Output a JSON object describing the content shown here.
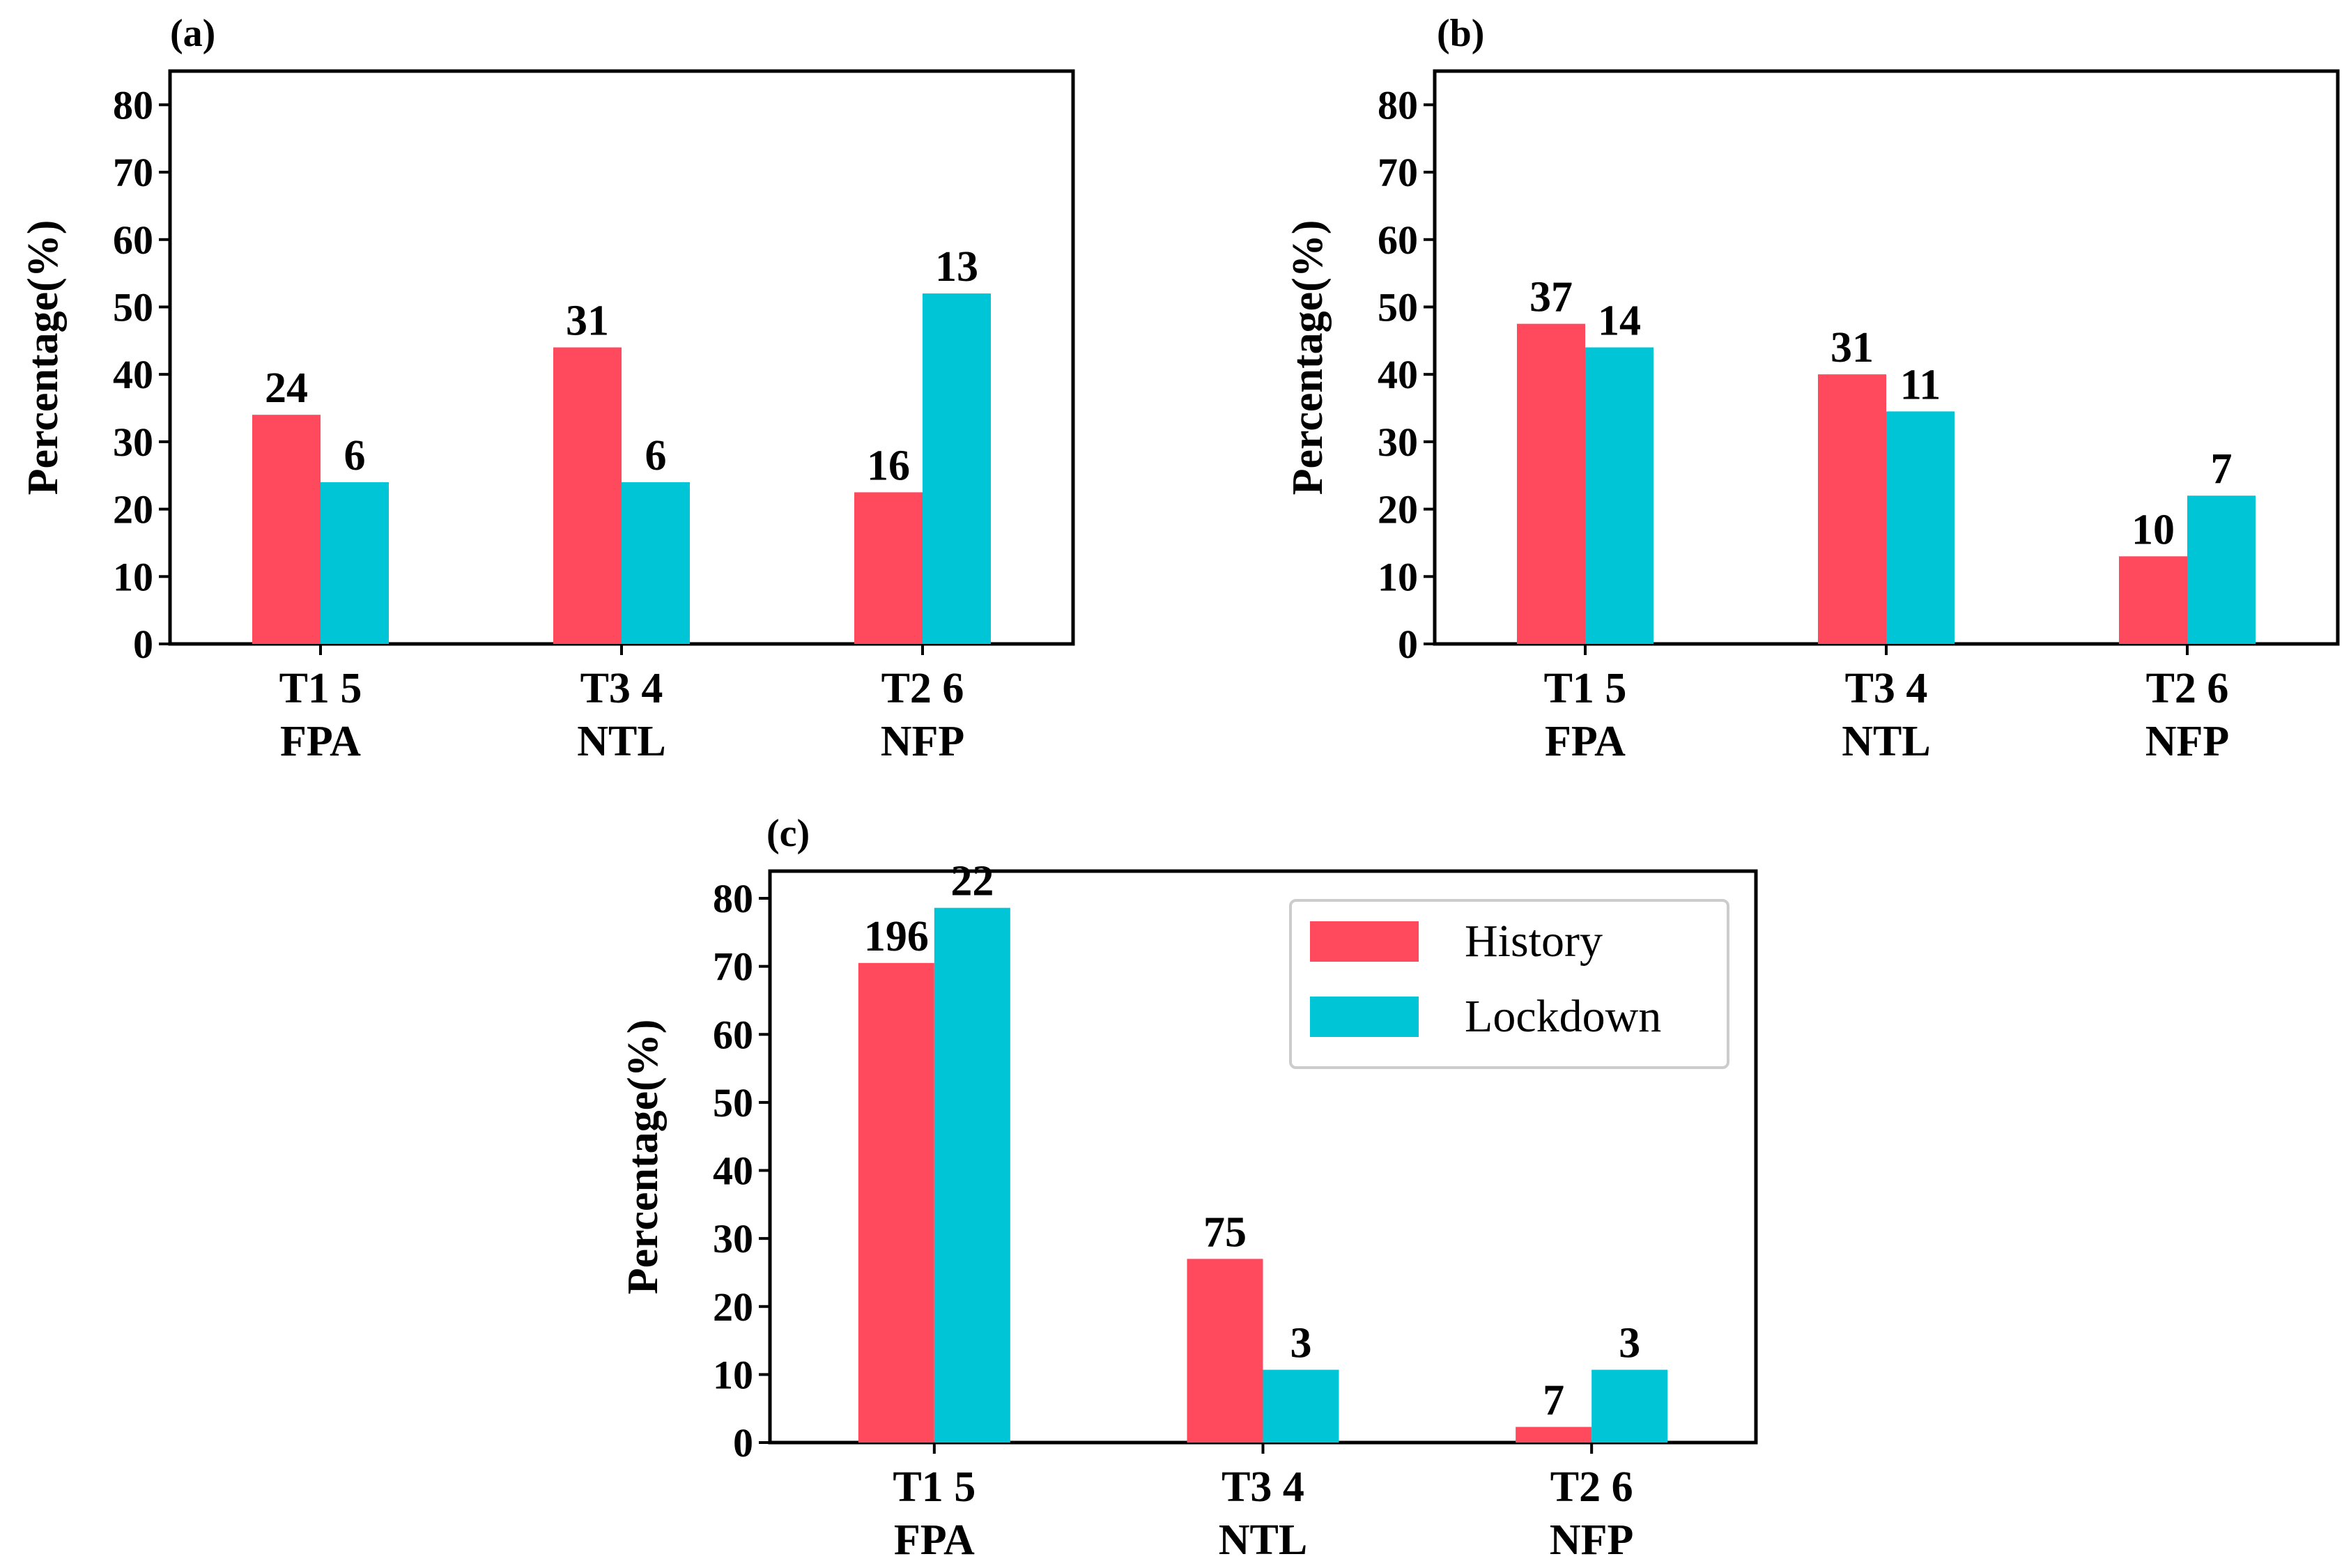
{
  "figure": {
    "legend": {
      "entries": [
        {
          "name": "History",
          "color": "#ff4a5e"
        },
        {
          "name": "Lockdown",
          "color": "#00c5d6"
        }
      ]
    }
  },
  "chart_data": [
    {
      "type": "bar",
      "panel": "(a)",
      "title": "",
      "xlabel": "",
      "ylabel": "Percentage(%)",
      "ylim": [
        0,
        85
      ],
      "yticks": [
        0,
        10,
        20,
        30,
        40,
        50,
        60,
        70,
        80
      ],
      "categories": [
        [
          "T1 5",
          "FPA"
        ],
        [
          "T3 4",
          "NTL"
        ],
        [
          "T2 6",
          "NFP"
        ]
      ],
      "series": [
        {
          "name": "History",
          "color": "#ff4a5e",
          "values": [
            34,
            44,
            22.5
          ],
          "labels": [
            "24",
            "31",
            "16"
          ]
        },
        {
          "name": "Lockdown",
          "color": "#00c5d6",
          "values": [
            24,
            24,
            52
          ],
          "labels": [
            "6",
            "6",
            "13"
          ]
        }
      ]
    },
    {
      "type": "bar",
      "panel": "(b)",
      "title": "",
      "xlabel": "",
      "ylabel": "Percentage(%)",
      "ylim": [
        0,
        85
      ],
      "yticks": [
        0,
        10,
        20,
        30,
        40,
        50,
        60,
        70,
        80
      ],
      "categories": [
        [
          "T1 5",
          "FPA"
        ],
        [
          "T3 4",
          "NTL"
        ],
        [
          "T2 6",
          "NFP"
        ]
      ],
      "series": [
        {
          "name": "History",
          "color": "#ff4a5e",
          "values": [
            47.5,
            40,
            13
          ],
          "labels": [
            "37",
            "31",
            "10"
          ]
        },
        {
          "name": "Lockdown",
          "color": "#00c5d6",
          "values": [
            44,
            34.5,
            22
          ],
          "labels": [
            "14",
            "11",
            "7"
          ]
        }
      ]
    },
    {
      "type": "bar",
      "panel": "(c)",
      "title": "",
      "xlabel": "",
      "ylabel": "Percentage(%)",
      "ylim": [
        0,
        84
      ],
      "yticks": [
        0,
        10,
        20,
        30,
        40,
        50,
        60,
        70,
        80
      ],
      "categories": [
        [
          "T1 5",
          "FPA"
        ],
        [
          "T3 4",
          "NTL"
        ],
        [
          "T2 6",
          "NFP"
        ]
      ],
      "series": [
        {
          "name": "History",
          "color": "#ff4a5e",
          "values": [
            70.5,
            27,
            2.3
          ],
          "labels": [
            "196",
            "75",
            "7"
          ]
        },
        {
          "name": "Lockdown",
          "color": "#00c5d6",
          "values": [
            78.6,
            10.7,
            10.7
          ],
          "labels": [
            "22",
            "3",
            "3"
          ]
        }
      ],
      "legend": "top-right"
    }
  ]
}
